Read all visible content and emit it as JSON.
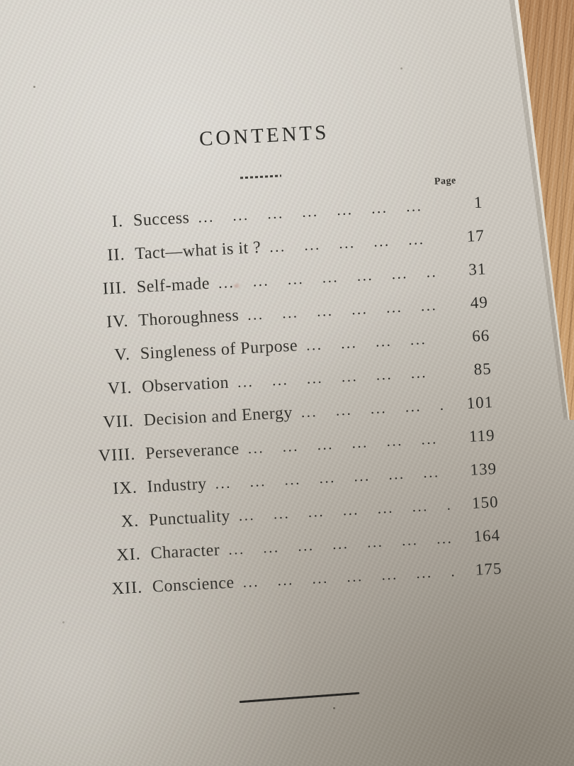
{
  "colors": {
    "paper": "#cdc8bf",
    "wood": "#c79c6e",
    "ink": "#2f2d29"
  },
  "book_page": {
    "title": "CONTENTS",
    "page_column_label": "Page",
    "dot_leader": "... ... ... ... ... ... ... ... ... ... ... ...",
    "entries": [
      {
        "numeral": "I.",
        "title": "Success",
        "page": "1"
      },
      {
        "numeral": "II.",
        "title": "Tact—what is it ?",
        "page": "17"
      },
      {
        "numeral": "III.",
        "title": "Self-made",
        "page": "31"
      },
      {
        "numeral": "IV.",
        "title": "Thoroughness",
        "page": "49"
      },
      {
        "numeral": "V.",
        "title": "Singleness of Purpose",
        "page": "66"
      },
      {
        "numeral": "VI.",
        "title": "Observation",
        "page": "85"
      },
      {
        "numeral": "VII.",
        "title": "Decision and Energy",
        "page": "101"
      },
      {
        "numeral": "VIII.",
        "title": "Perseverance",
        "page": "119"
      },
      {
        "numeral": "IX.",
        "title": "Industry",
        "page": "139"
      },
      {
        "numeral": "X.",
        "title": "Punctuality",
        "page": "150"
      },
      {
        "numeral": "XI.",
        "title": "Character",
        "page": "164"
      },
      {
        "numeral": "XII.",
        "title": "Conscience",
        "page": "175"
      }
    ]
  }
}
